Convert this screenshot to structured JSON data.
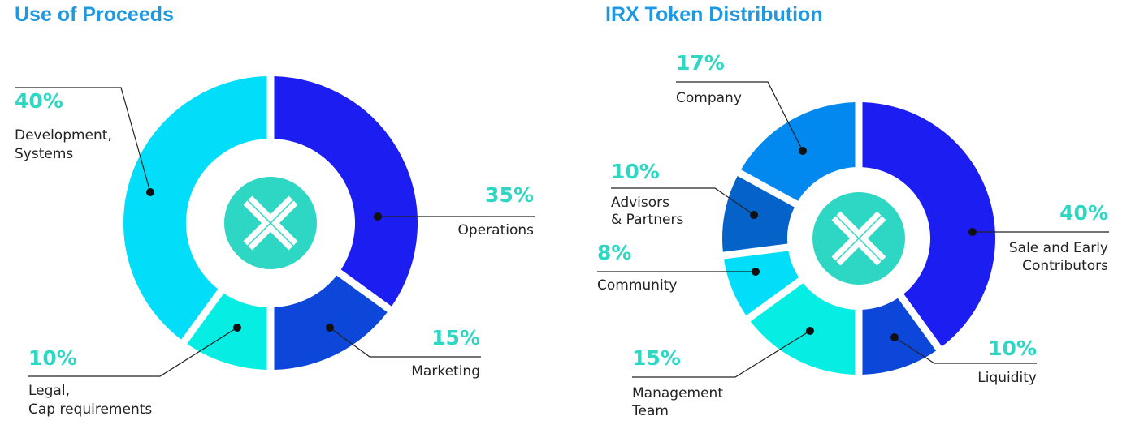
{
  "chart_data": [
    {
      "type": "pie",
      "title": "Use of Proceeds",
      "slices": [
        {
          "label_lines": [
            "Operations"
          ],
          "percent_text": "35%",
          "value": 35,
          "color": "#1c1df0"
        },
        {
          "label_lines": [
            "Marketing"
          ],
          "percent_text": "15%",
          "value": 15,
          "color": "#0d47d9"
        },
        {
          "label_lines": [
            "Legal,",
            "Cap requirements"
          ],
          "percent_text": "10%",
          "value": 10,
          "color": "#06eee3"
        },
        {
          "label_lines": [
            "Development,",
            "Systems"
          ],
          "percent_text": "40%",
          "value": 40,
          "color": "#02ddf9"
        }
      ]
    },
    {
      "type": "pie",
      "title": "IRX Token Distribution",
      "slices": [
        {
          "label_lines": [
            "Sale and Early",
            "Contributors"
          ],
          "percent_text": "40%",
          "value": 40,
          "color": "#1c1df0"
        },
        {
          "label_lines": [
            "Liquidity"
          ],
          "percent_text": "10%",
          "value": 10,
          "color": "#0d47d9"
        },
        {
          "label_lines": [
            "Management",
            "Team"
          ],
          "percent_text": "15%",
          "value": 15,
          "color": "#06eee3"
        },
        {
          "label_lines": [
            "Community"
          ],
          "percent_text": "8%",
          "value": 8,
          "color": "#02ddf9"
        },
        {
          "label_lines": [
            "Advisors",
            "& Partners"
          ],
          "percent_text": "10%",
          "value": 10,
          "color": "#0562c8"
        },
        {
          "label_lines": [
            "Company"
          ],
          "percent_text": "17%",
          "value": 17,
          "color": "#0289ef"
        }
      ]
    }
  ],
  "colors": {
    "title": "#1e98e0",
    "percent": "#2ed7c4",
    "logo_disc": "#2ed7c4",
    "leader": "#222222"
  },
  "icons": {
    "logo": "x-logo-icon"
  }
}
